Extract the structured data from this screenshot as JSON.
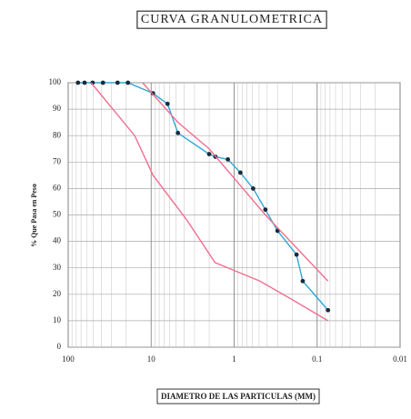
{
  "chart_data": {
    "type": "line",
    "title": "CURVA GRANULOMETRICA",
    "x_label": "DIAMETRO DE LAS PARTICULAS (MM)",
    "y_label": "% Que Pasa en Peso",
    "xscale": "log",
    "grid": true,
    "xlim": [
      100,
      0.01
    ],
    "xticks": [
      100,
      10,
      1,
      0.1,
      {
        "value": 0.01,
        "label": "0.01"
      }
    ],
    "ylim": [
      0,
      100
    ],
    "yticks": [
      0,
      10,
      20,
      30,
      40,
      50,
      60,
      70,
      80,
      90,
      100
    ],
    "series": [
      {
        "color": "#2fa8d8",
        "markers": true,
        "x": [
          76.2,
          63.5,
          50.8,
          38.1,
          25.4,
          19.05,
          9.52,
          6.35,
          4.76,
          2.0,
          1.68,
          1.19,
          0.84,
          0.59,
          0.42,
          0.3,
          0.177,
          0.149,
          0.074
        ],
        "values": [
          100,
          100,
          100,
          100,
          100,
          100,
          96,
          92,
          81,
          73,
          72,
          71,
          66,
          60,
          52,
          44,
          35,
          25,
          14
        ]
      },
      {
        "color": "#f07090",
        "markers": false,
        "x": [
          53,
          15.8,
          9.5,
          3.7,
          1.7,
          0.49,
          0.2,
          0.074
        ],
        "values": [
          100,
          80,
          65,
          48,
          32,
          25,
          18,
          10
        ]
      },
      {
        "color": "#f07090",
        "markers": false,
        "x": [
          12.7,
          4.76,
          2.0,
          0.42,
          0.074
        ],
        "values": [
          100,
          85,
          75,
          50,
          25
        ]
      }
    ]
  }
}
